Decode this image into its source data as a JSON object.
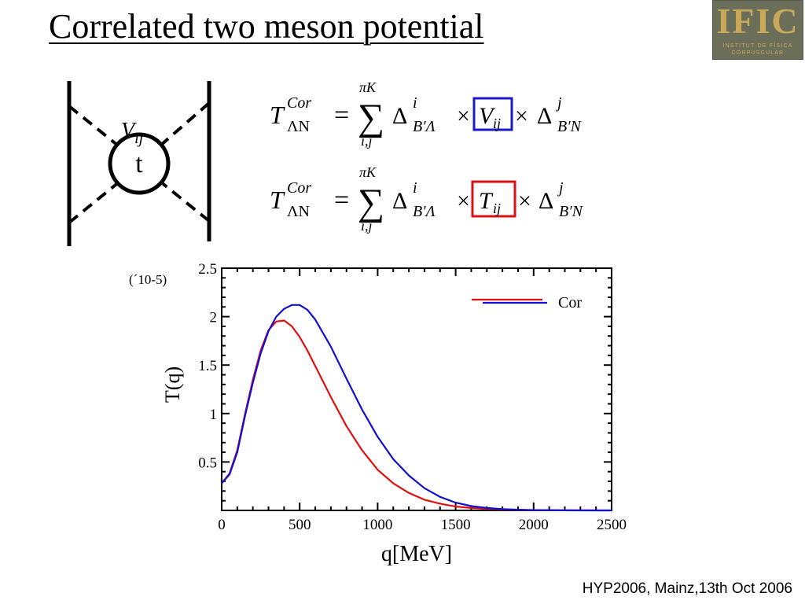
{
  "slide": {
    "title": "Correlated two meson potential",
    "footer": "HYP2006, Mainz,13th Oct 2006"
  },
  "logo": {
    "main": "IFIC",
    "line1": "INSTITUT DE FÍSICA",
    "line2": "CORPUSCULAR"
  },
  "diagram": {
    "vertex_label": "V",
    "vertex_sub": "ij",
    "loop_label": "t"
  },
  "equations": [
    {
      "lhs": "T",
      "lhs_sup": "Cor",
      "lhs_sub": "ΛN",
      "sum_top": "πK",
      "sum_bottom": "i,j",
      "delta1_sup": "i",
      "delta1_sub": "B′Λ",
      "boxed": "V",
      "boxed_sub": "ij",
      "delta2_sup": "j",
      "delta2_sub": "B′N",
      "box_color": "#1a1acc"
    },
    {
      "lhs": "T",
      "lhs_sup": "Cor",
      "lhs_sub": "ΛN",
      "sum_top": "πK",
      "sum_bottom": "i,j",
      "delta1_sup": "i",
      "delta1_sub": "B′Λ",
      "boxed": "T",
      "boxed_sub": "ij",
      "delta2_sup": "j",
      "delta2_sub": "B′N",
      "box_color": "#dd1111"
    }
  ],
  "chart_data": {
    "type": "line",
    "xlabel": "q[MeV]",
    "ylabel": "T(q)",
    "scale_note": "(´10-5)",
    "xlim": [
      0,
      2500
    ],
    "ylim": [
      0,
      2.5
    ],
    "xticks": [
      0,
      500,
      1000,
      1500,
      2000,
      2500
    ],
    "yticks": [
      0.5,
      1,
      1.5,
      2,
      2.5
    ],
    "xtick_labels": [
      "0",
      "500",
      "1000",
      "1500",
      "2000",
      "2500"
    ],
    "ytick_labels": [
      "0.5",
      "1",
      "1.5",
      "2",
      "2.5"
    ],
    "legend_position": "top-right",
    "legend_label": "Cor",
    "series": [
      {
        "color": "#e01010",
        "x": [
          0,
          50,
          100,
          150,
          200,
          250,
          300,
          350,
          400,
          450,
          500,
          550,
          600,
          700,
          800,
          900,
          1000,
          1100,
          1200,
          1300,
          1400,
          1500,
          1600,
          1700,
          1800,
          1900,
          2000,
          2200,
          2500
        ],
        "y": [
          0.28,
          0.38,
          0.62,
          1.0,
          1.35,
          1.65,
          1.86,
          1.95,
          1.96,
          1.9,
          1.79,
          1.65,
          1.49,
          1.17,
          0.87,
          0.62,
          0.42,
          0.28,
          0.18,
          0.11,
          0.07,
          0.04,
          0.025,
          0.015,
          0.01,
          0.005,
          0.003,
          0.001,
          0.0
        ]
      },
      {
        "color": "#1010d0",
        "x": [
          0,
          50,
          100,
          150,
          200,
          250,
          300,
          350,
          400,
          450,
          500,
          550,
          600,
          700,
          800,
          900,
          1000,
          1100,
          1200,
          1300,
          1400,
          1500,
          1600,
          1700,
          1800,
          1900,
          2000,
          2200,
          2500
        ],
        "y": [
          0.28,
          0.37,
          0.6,
          0.98,
          1.32,
          1.62,
          1.85,
          2.0,
          2.08,
          2.12,
          2.12,
          2.07,
          1.97,
          1.69,
          1.36,
          1.04,
          0.76,
          0.53,
          0.36,
          0.23,
          0.14,
          0.08,
          0.045,
          0.025,
          0.013,
          0.007,
          0.003,
          0.001,
          0.0
        ]
      }
    ]
  }
}
